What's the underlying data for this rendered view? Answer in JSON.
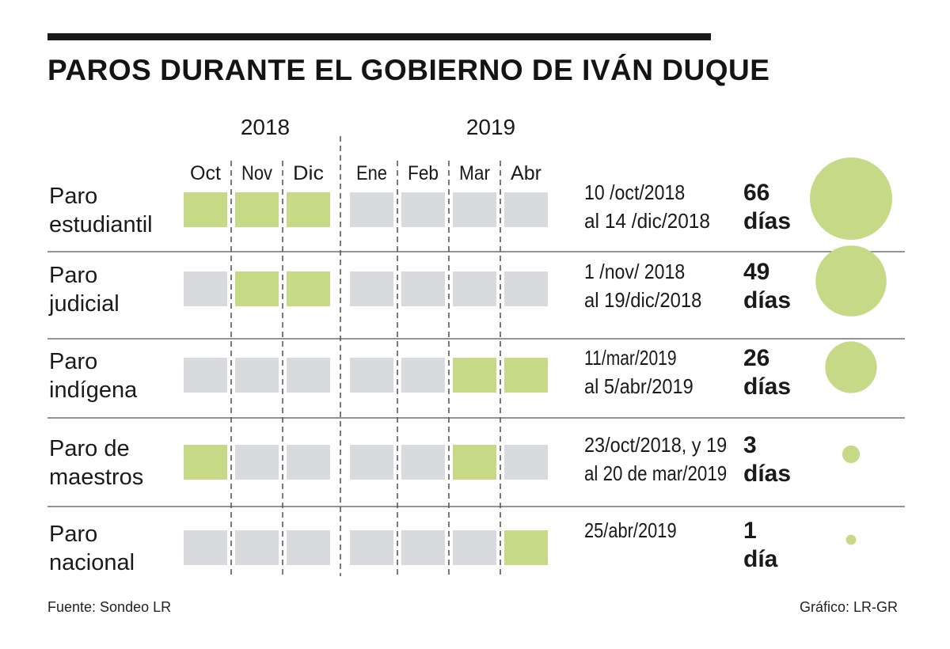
{
  "title": "PAROS DURANTE EL GOBIERNO DE IVÁN DUQUE",
  "source": "Fuente: Sondeo LR",
  "credit": "Gráfico: LR-GR",
  "colors": {
    "active": "#c5d987",
    "inactive": "#d9dadd",
    "text": "#1a1a1a",
    "rule": "#555555"
  },
  "chart_data": {
    "type": "table",
    "years": [
      {
        "label": "2018",
        "months": [
          0,
          1,
          2
        ]
      },
      {
        "label": "2019",
        "months": [
          3,
          4,
          5,
          6
        ]
      }
    ],
    "months": [
      "Oct",
      "Nov",
      "Dic",
      "Ene",
      "Feb",
      "Mar",
      "Abr"
    ],
    "rows": [
      {
        "name": [
          "Paro",
          "estudiantil"
        ],
        "active": [
          1,
          1,
          1,
          0,
          0,
          0,
          0
        ],
        "dates": [
          "10 /oct/2018",
          "al 14 /dic/2018"
        ],
        "days": 66,
        "days_label": [
          "66",
          "días"
        ]
      },
      {
        "name": [
          "Paro",
          "judicial"
        ],
        "active": [
          0,
          1,
          1,
          0,
          0,
          0,
          0
        ],
        "dates": [
          "1 /nov/ 2018",
          "al 19/dic/2018"
        ],
        "days": 49,
        "days_label": [
          "49",
          "días"
        ]
      },
      {
        "name": [
          "Paro",
          "indígena"
        ],
        "active": [
          0,
          0,
          0,
          0,
          0,
          1,
          1
        ],
        "dates": [
          "11/mar/2019",
          "al 5/abr/2019"
        ],
        "days": 26,
        "days_label": [
          "26",
          "días"
        ]
      },
      {
        "name": [
          "Paro de",
          "maestros"
        ],
        "active": [
          1,
          0,
          0,
          0,
          0,
          1,
          0
        ],
        "dates": [
          "23/oct/2018, y 19",
          "al 20 de mar/2019"
        ],
        "days": 3,
        "days_label": [
          "3",
          "días"
        ]
      },
      {
        "name": [
          "Paro",
          "nacional"
        ],
        "active": [
          0,
          0,
          0,
          0,
          0,
          0,
          1
        ],
        "dates": [
          "25/abr/2019"
        ],
        "days": 1,
        "days_label": [
          "1",
          "día"
        ]
      }
    ]
  }
}
